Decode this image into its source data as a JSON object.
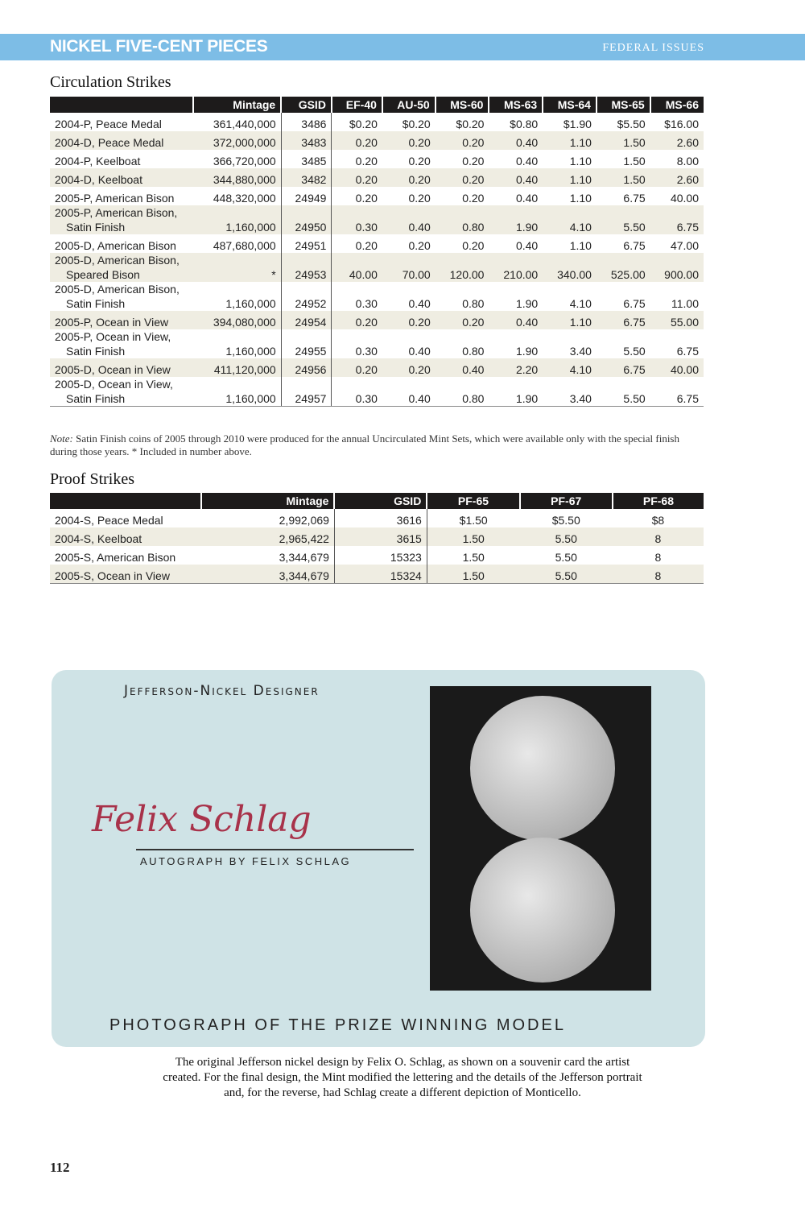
{
  "header": {
    "title": "NICKEL FIVE-CENT PIECES",
    "section": "FEDERAL ISSUES"
  },
  "circulation": {
    "title": "Circulation Strikes",
    "columns": [
      "",
      "Mintage",
      "GSID",
      "EF-40",
      "AU-50",
      "MS-60",
      "MS-63",
      "MS-64",
      "MS-65",
      "MS-66"
    ],
    "rows": [
      [
        "2004-P, Peace Medal",
        "",
        "361,440,000",
        "3486",
        "$0.20",
        "$0.20",
        "$0.20",
        "$0.80",
        "$1.90",
        "$5.50",
        "$16.00"
      ],
      [
        "2004-D, Peace Medal",
        "",
        "372,000,000",
        "3483",
        "0.20",
        "0.20",
        "0.20",
        "0.40",
        "1.10",
        "1.50",
        "2.60"
      ],
      [
        "2004-P, Keelboat",
        "",
        "366,720,000",
        "3485",
        "0.20",
        "0.20",
        "0.20",
        "0.40",
        "1.10",
        "1.50",
        "8.00"
      ],
      [
        "2004-D, Keelboat",
        "",
        "344,880,000",
        "3482",
        "0.20",
        "0.20",
        "0.20",
        "0.40",
        "1.10",
        "1.50",
        "2.60"
      ],
      [
        "2005-P, American Bison",
        "",
        "448,320,000",
        "24949",
        "0.20",
        "0.20",
        "0.20",
        "0.40",
        "1.10",
        "6.75",
        "40.00"
      ],
      [
        "2005-P, American Bison,",
        "Satin Finish",
        "1,160,000",
        "24950",
        "0.30",
        "0.40",
        "0.80",
        "1.90",
        "4.10",
        "5.50",
        "6.75"
      ],
      [
        "2005-D, American Bison",
        "",
        "487,680,000",
        "24951",
        "0.20",
        "0.20",
        "0.20",
        "0.40",
        "1.10",
        "6.75",
        "47.00"
      ],
      [
        "2005-D, American Bison,",
        "Speared Bison",
        "*",
        "24953",
        "40.00",
        "70.00",
        "120.00",
        "210.00",
        "340.00",
        "525.00",
        "900.00"
      ],
      [
        "2005-D, American Bison,",
        "Satin Finish",
        "1,160,000",
        "24952",
        "0.30",
        "0.40",
        "0.80",
        "1.90",
        "4.10",
        "6.75",
        "11.00"
      ],
      [
        "2005-P, Ocean in View",
        "",
        "394,080,000",
        "24954",
        "0.20",
        "0.20",
        "0.20",
        "0.40",
        "1.10",
        "6.75",
        "55.00"
      ],
      [
        "2005-P, Ocean in View,",
        "Satin Finish",
        "1,160,000",
        "24955",
        "0.30",
        "0.40",
        "0.80",
        "1.90",
        "3.40",
        "5.50",
        "6.75"
      ],
      [
        "2005-D, Ocean in View",
        "",
        "411,120,000",
        "24956",
        "0.20",
        "0.20",
        "0.40",
        "2.20",
        "4.10",
        "6.75",
        "40.00"
      ],
      [
        "2005-D, Ocean in View,",
        "Satin Finish",
        "1,160,000",
        "24957",
        "0.30",
        "0.40",
        "0.80",
        "1.90",
        "3.40",
        "5.50",
        "6.75"
      ]
    ],
    "note_label": "Note:",
    "note": " Satin Finish coins of 2005 through 2010 were produced for the annual Uncirculated Mint Sets, which were available only with the special finish during those years. * Included in number above."
  },
  "proof": {
    "title": "Proof Strikes",
    "columns": [
      "",
      "Mintage",
      "GSID",
      "PF-65",
      "PF-67",
      "PF-68"
    ],
    "rows": [
      [
        "2004-S, Peace Medal",
        "2,992,069",
        "3616",
        "$1.50",
        "$5.50",
        "$8"
      ],
      [
        "2004-S, Keelboat",
        "2,965,422",
        "3615",
        "1.50",
        "5.50",
        "8"
      ],
      [
        "2005-S, American Bison",
        "3,344,679",
        "15323",
        "1.50",
        "5.50",
        "8"
      ],
      [
        "2005-S, Ocean in View",
        "3,344,679",
        "15324",
        "1.50",
        "5.50",
        "8"
      ]
    ]
  },
  "card": {
    "heading": "Jefferson-Nickel Designer",
    "signature": "Felix Schlag",
    "autograph": "AUTOGRAPH BY FELIX SCHLAG",
    "bottom": "PHOTOGRAPH OF THE PRIZE WINNING MODEL"
  },
  "caption": "The original Jefferson nickel design by Felix O. Schlag, as shown on a souvenir card the artist created. For the final design, the Mint modified the lettering and the details of the Jefferson portrait and, for the reverse, had Schlag create a different depiction of Monticello.",
  "page_number": "112"
}
